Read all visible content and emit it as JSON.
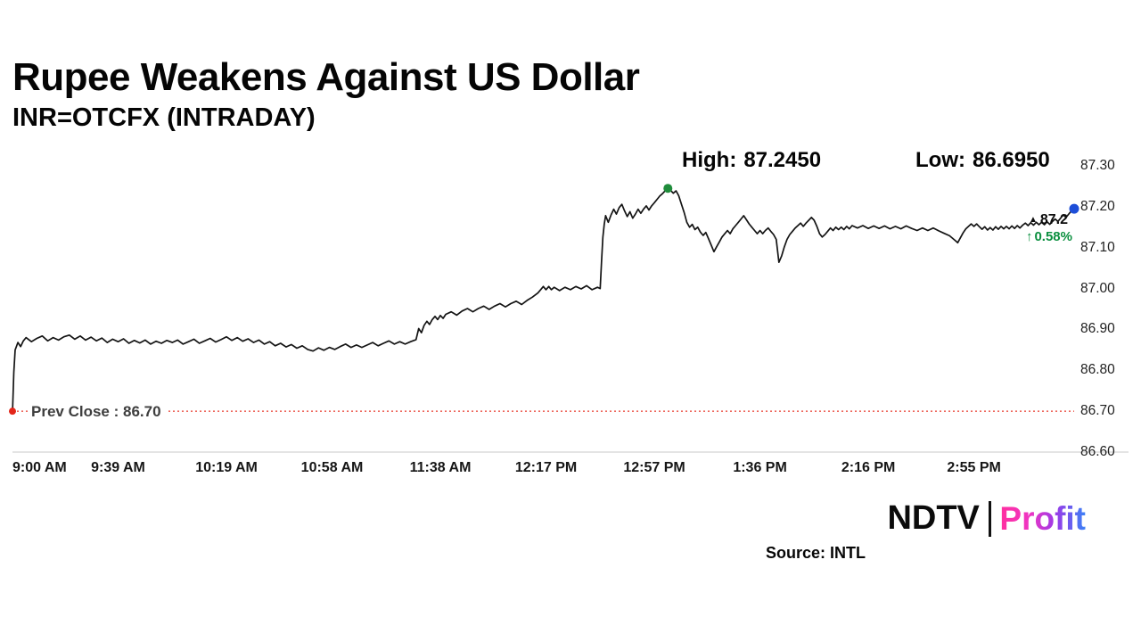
{
  "header": {
    "title": "Rupee Weakens Against US Dollar",
    "subtitle": "INR=OTCFX (INTRADAY)"
  },
  "stats": {
    "high": {
      "label": "High:",
      "value": "87.2450"
    },
    "low": {
      "label": "Low:",
      "value": "86.6950"
    }
  },
  "icons": {
    "up_triangle": "▲",
    "up_arrow": "↑"
  },
  "chart_data": {
    "type": "line",
    "title": "Rupee Weakens Against US Dollar",
    "series_name": "INR=OTCFX (INTRADAY)",
    "xlabel": "",
    "ylabel": "",
    "grid": false,
    "legend": false,
    "ylim": [
      86.6,
      87.3
    ],
    "x_range_minutes": [
      0,
      392
    ],
    "session_high": 87.245,
    "session_low": 86.695,
    "line_color": "#141414",
    "y_axis": {
      "side": "right",
      "ticks": [
        {
          "label": "87.30",
          "value": 87.3
        },
        {
          "label": "87.20",
          "value": 87.2
        },
        {
          "label": "87.10",
          "value": 87.1
        },
        {
          "label": "87.00",
          "value": 87.0
        },
        {
          "label": "86.90",
          "value": 86.9
        },
        {
          "label": "86.80",
          "value": 86.8
        },
        {
          "label": "86.70",
          "value": 86.7
        },
        {
          "label": "86.60",
          "value": 86.6
        }
      ]
    },
    "x_axis": {
      "ticks": [
        {
          "label": "9:00 AM",
          "t": 0
        },
        {
          "label": "9:39 AM",
          "t": 39
        },
        {
          "label": "10:19 AM",
          "t": 79
        },
        {
          "label": "10:58 AM",
          "t": 118
        },
        {
          "label": "11:38 AM",
          "t": 158
        },
        {
          "label": "12:17 PM",
          "t": 197
        },
        {
          "label": "12:57 PM",
          "t": 237
        },
        {
          "label": "1:36 PM",
          "t": 276
        },
        {
          "label": "2:16 PM",
          "t": 316
        },
        {
          "label": "2:55 PM",
          "t": 355
        }
      ]
    },
    "prev_close": {
      "value": 86.7,
      "label": "Prev Close : 86.70",
      "line_color": "#ee6a60",
      "dot_color": "#e3261a"
    },
    "high_marker": {
      "t": 242,
      "value": 87.245,
      "color": "#1f8c3b"
    },
    "last_marker": {
      "t": 392,
      "value": 87.195,
      "color": "#1d4ed8"
    },
    "last_price_label": "87.2",
    "change_label": "0.58%",
    "change_color": "#0b8f3f",
    "points": [
      [
        0,
        86.695
      ],
      [
        0.5,
        86.795
      ],
      [
        1,
        86.85
      ],
      [
        2,
        86.868
      ],
      [
        3,
        86.858
      ],
      [
        4,
        86.872
      ],
      [
        5,
        86.88
      ],
      [
        7,
        86.87
      ],
      [
        9,
        86.878
      ],
      [
        11,
        86.884
      ],
      [
        13,
        86.872
      ],
      [
        15,
        86.88
      ],
      [
        17,
        86.874
      ],
      [
        19,
        86.882
      ],
      [
        21,
        86.886
      ],
      [
        23,
        86.876
      ],
      [
        25,
        86.884
      ],
      [
        27,
        86.874
      ],
      [
        29,
        86.881
      ],
      [
        31,
        86.872
      ],
      [
        33,
        86.879
      ],
      [
        35,
        86.868
      ],
      [
        37,
        86.876
      ],
      [
        39,
        86.87
      ],
      [
        41,
        86.877
      ],
      [
        43,
        86.866
      ],
      [
        45,
        86.873
      ],
      [
        47,
        86.867
      ],
      [
        49,
        86.874
      ],
      [
        51,
        86.864
      ],
      [
        53,
        86.871
      ],
      [
        55,
        86.866
      ],
      [
        57,
        86.873
      ],
      [
        59,
        86.868
      ],
      [
        61,
        86.874
      ],
      [
        63,
        86.864
      ],
      [
        65,
        86.87
      ],
      [
        67,
        86.876
      ],
      [
        69,
        86.866
      ],
      [
        71,
        86.872
      ],
      [
        73,
        86.878
      ],
      [
        75,
        86.869
      ],
      [
        77,
        86.875
      ],
      [
        79,
        86.882
      ],
      [
        81,
        86.873
      ],
      [
        83,
        86.88
      ],
      [
        85,
        86.871
      ],
      [
        87,
        86.877
      ],
      [
        89,
        86.868
      ],
      [
        91,
        86.874
      ],
      [
        93,
        86.864
      ],
      [
        95,
        86.87
      ],
      [
        97,
        86.86
      ],
      [
        99,
        86.866
      ],
      [
        101,
        86.857
      ],
      [
        103,
        86.863
      ],
      [
        105,
        86.854
      ],
      [
        107,
        86.86
      ],
      [
        109,
        86.851
      ],
      [
        111,
        86.847
      ],
      [
        113,
        86.855
      ],
      [
        115,
        86.849
      ],
      [
        117,
        86.856
      ],
      [
        119,
        86.851
      ],
      [
        121,
        86.858
      ],
      [
        123,
        86.864
      ],
      [
        125,
        86.856
      ],
      [
        127,
        86.862
      ],
      [
        129,
        86.856
      ],
      [
        131,
        86.862
      ],
      [
        133,
        86.868
      ],
      [
        135,
        86.86
      ],
      [
        137,
        86.866
      ],
      [
        139,
        86.872
      ],
      [
        141,
        86.864
      ],
      [
        143,
        86.87
      ],
      [
        145,
        86.864
      ],
      [
        147,
        86.87
      ],
      [
        149,
        86.875
      ],
      [
        150,
        86.902
      ],
      [
        151,
        86.892
      ],
      [
        152,
        86.91
      ],
      [
        153,
        86.92
      ],
      [
        154,
        86.912
      ],
      [
        155,
        86.924
      ],
      [
        156,
        86.932
      ],
      [
        157,
        86.924
      ],
      [
        158,
        86.934
      ],
      [
        159,
        86.927
      ],
      [
        160,
        86.937
      ],
      [
        162,
        86.943
      ],
      [
        164,
        86.935
      ],
      [
        166,
        86.945
      ],
      [
        168,
        86.951
      ],
      [
        170,
        86.943
      ],
      [
        172,
        86.951
      ],
      [
        174,
        86.957
      ],
      [
        176,
        86.949
      ],
      [
        178,
        86.957
      ],
      [
        180,
        86.963
      ],
      [
        182,
        86.955
      ],
      [
        184,
        86.963
      ],
      [
        186,
        86.969
      ],
      [
        188,
        86.961
      ],
      [
        190,
        86.971
      ],
      [
        192,
        86.979
      ],
      [
        194,
        86.989
      ],
      [
        195,
        86.997
      ],
      [
        196,
        87.005
      ],
      [
        197,
        86.997
      ],
      [
        198,
        87.005
      ],
      [
        199,
        86.997
      ],
      [
        200,
        87.003
      ],
      [
        202,
        86.995
      ],
      [
        204,
        87.003
      ],
      [
        206,
        86.997
      ],
      [
        208,
        87.005
      ],
      [
        210,
        86.999
      ],
      [
        212,
        87.007
      ],
      [
        214,
        86.997
      ],
      [
        216,
        87.003
      ],
      [
        217,
        87.0
      ],
      [
        217.5,
        87.065
      ],
      [
        218,
        87.125
      ],
      [
        218.5,
        87.158
      ],
      [
        219,
        87.178
      ],
      [
        220,
        87.162
      ],
      [
        221,
        87.18
      ],
      [
        222,
        87.194
      ],
      [
        223,
        87.182
      ],
      [
        224,
        87.198
      ],
      [
        225,
        87.206
      ],
      [
        226,
        87.19
      ],
      [
        227,
        87.176
      ],
      [
        228,
        87.188
      ],
      [
        229,
        87.172
      ],
      [
        230,
        87.182
      ],
      [
        231,
        87.194
      ],
      [
        232,
        87.184
      ],
      [
        233,
        87.194
      ],
      [
        234,
        87.202
      ],
      [
        235,
        87.192
      ],
      [
        236,
        87.202
      ],
      [
        237,
        87.21
      ],
      [
        238,
        87.218
      ],
      [
        239,
        87.226
      ],
      [
        240,
        87.232
      ],
      [
        241,
        87.239
      ],
      [
        242,
        87.245
      ],
      [
        243,
        87.24
      ],
      [
        244,
        87.233
      ],
      [
        245,
        87.239
      ],
      [
        246,
        87.227
      ],
      [
        247,
        87.206
      ],
      [
        248,
        87.186
      ],
      [
        249,
        87.162
      ],
      [
        250,
        87.15
      ],
      [
        251,
        87.157
      ],
      [
        252,
        87.144
      ],
      [
        253,
        87.15
      ],
      [
        254,
        87.138
      ],
      [
        255,
        87.13
      ],
      [
        256,
        87.137
      ],
      [
        257,
        87.122
      ],
      [
        258,
        87.106
      ],
      [
        259,
        87.09
      ],
      [
        260,
        87.102
      ],
      [
        261,
        87.114
      ],
      [
        262,
        87.126
      ],
      [
        263,
        87.134
      ],
      [
        264,
        87.142
      ],
      [
        265,
        87.134
      ],
      [
        266,
        87.146
      ],
      [
        267,
        87.154
      ],
      [
        268,
        87.162
      ],
      [
        269,
        87.17
      ],
      [
        270,
        87.178
      ],
      [
        271,
        87.168
      ],
      [
        272,
        87.158
      ],
      [
        273,
        87.15
      ],
      [
        274,
        87.142
      ],
      [
        275,
        87.134
      ],
      [
        276,
        87.142
      ],
      [
        277,
        87.134
      ],
      [
        278,
        87.142
      ],
      [
        279,
        87.148
      ],
      [
        280,
        87.14
      ],
      [
        281,
        87.132
      ],
      [
        282,
        87.12
      ],
      [
        283,
        87.064
      ],
      [
        284,
        87.08
      ],
      [
        285,
        87.102
      ],
      [
        286,
        87.12
      ],
      [
        287,
        87.132
      ],
      [
        288,
        87.14
      ],
      [
        289,
        87.148
      ],
      [
        290,
        87.154
      ],
      [
        291,
        87.16
      ],
      [
        292,
        87.152
      ],
      [
        293,
        87.16
      ],
      [
        294,
        87.167
      ],
      [
        295,
        87.174
      ],
      [
        296,
        87.167
      ],
      [
        297,
        87.152
      ],
      [
        298,
        87.134
      ],
      [
        299,
        87.126
      ],
      [
        300,
        87.132
      ],
      [
        301,
        87.14
      ],
      [
        302,
        87.148
      ],
      [
        303,
        87.142
      ],
      [
        304,
        87.15
      ],
      [
        305,
        87.144
      ],
      [
        306,
        87.15
      ],
      [
        307,
        87.144
      ],
      [
        308,
        87.152
      ],
      [
        309,
        87.146
      ],
      [
        310,
        87.154
      ],
      [
        312,
        87.148
      ],
      [
        314,
        87.154
      ],
      [
        316,
        87.147
      ],
      [
        318,
        87.153
      ],
      [
        320,
        87.147
      ],
      [
        322,
        87.153
      ],
      [
        324,
        87.146
      ],
      [
        326,
        87.152
      ],
      [
        328,
        87.146
      ],
      [
        330,
        87.153
      ],
      [
        332,
        87.147
      ],
      [
        334,
        87.142
      ],
      [
        336,
        87.148
      ],
      [
        338,
        87.142
      ],
      [
        340,
        87.148
      ],
      [
        342,
        87.141
      ],
      [
        344,
        87.135
      ],
      [
        346,
        87.129
      ],
      [
        348,
        87.118
      ],
      [
        349,
        87.112
      ],
      [
        350,
        87.124
      ],
      [
        351,
        87.136
      ],
      [
        352,
        87.146
      ],
      [
        353,
        87.152
      ],
      [
        354,
        87.158
      ],
      [
        355,
        87.152
      ],
      [
        356,
        87.158
      ],
      [
        357,
        87.151
      ],
      [
        358,
        87.145
      ],
      [
        359,
        87.151
      ],
      [
        360,
        87.143
      ],
      [
        361,
        87.149
      ],
      [
        362,
        87.143
      ],
      [
        363,
        87.151
      ],
      [
        364,
        87.145
      ],
      [
        365,
        87.152
      ],
      [
        366,
        87.146
      ],
      [
        367,
        87.152
      ],
      [
        368,
        87.146
      ],
      [
        369,
        87.153
      ],
      [
        370,
        87.147
      ],
      [
        371,
        87.154
      ],
      [
        372,
        87.148
      ],
      [
        373,
        87.155
      ],
      [
        374,
        87.16
      ],
      [
        375,
        87.154
      ],
      [
        376,
        87.161
      ],
      [
        377,
        87.155
      ],
      [
        378,
        87.162
      ],
      [
        379,
        87.156
      ],
      [
        380,
        87.162
      ],
      [
        381,
        87.156
      ],
      [
        382,
        87.163
      ],
      [
        383,
        87.157
      ],
      [
        384,
        87.164
      ],
      [
        385,
        87.17
      ],
      [
        386,
        87.164
      ],
      [
        387,
        87.172
      ],
      [
        388,
        87.18
      ],
      [
        389,
        87.174
      ],
      [
        390,
        87.182
      ],
      [
        391,
        87.19
      ],
      [
        392,
        87.195
      ]
    ]
  },
  "footer": {
    "brand_left": "NDTV",
    "brand_right": "Profit",
    "source": "Source: INTL"
  }
}
